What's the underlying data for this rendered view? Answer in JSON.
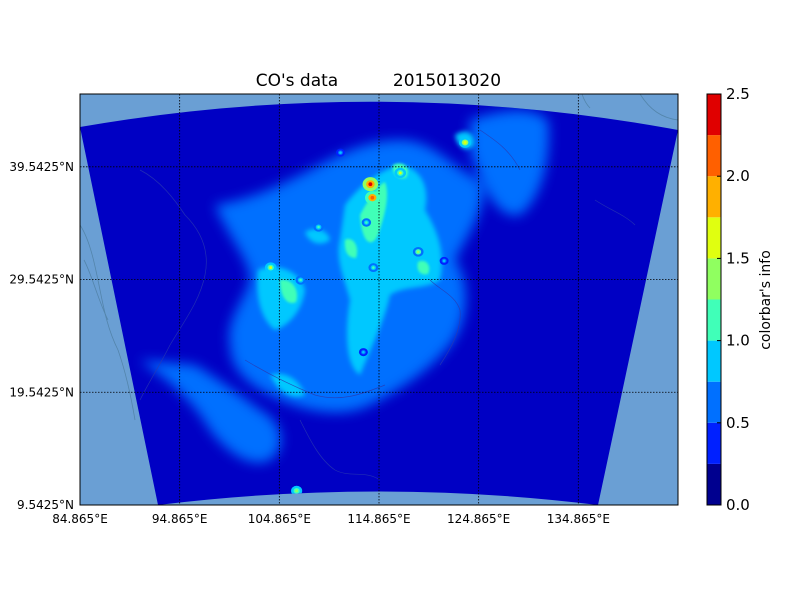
{
  "chart_data": {
    "type": "heatmap",
    "title": "CO's data",
    "timestamp": "2015013020",
    "x_ticks": [
      "84.865°E",
      "94.865°E",
      "104.865°E",
      "114.865°E",
      "124.865°E",
      "134.865°E"
    ],
    "x_tick_values": [
      84.865,
      94.865,
      104.865,
      114.865,
      124.865,
      134.865
    ],
    "y_ticks": [
      "9.5425°N",
      "19.5425°N",
      "29.5425°N",
      "39.5425°N"
    ],
    "y_tick_values": [
      9.5425,
      19.5425,
      29.5425,
      39.5425
    ],
    "xlim": [
      84.865,
      144.865
    ],
    "ylim": [
      9.5425,
      46.0
    ],
    "grid": true,
    "colorbar": {
      "label": "colorbar's info",
      "ticks": [
        "0.0",
        "0.5",
        "1.0",
        "1.5",
        "2.0",
        "2.5"
      ],
      "range": [
        0.0,
        2.5
      ],
      "levels": [
        0.0,
        0.25,
        0.5,
        0.75,
        1.0,
        1.25,
        1.5,
        1.75,
        2.0,
        2.25,
        2.5
      ],
      "colors": [
        "#00008f",
        "#0020ff",
        "#0070ff",
        "#00c8ff",
        "#40ffb8",
        "#90ff60",
        "#e0ff10",
        "#ffb000",
        "#ff6000",
        "#e00000"
      ]
    },
    "colors": {
      "ocean": "#6a9fd4",
      "background_field": "#0000c4",
      "low": "#0020ff",
      "mid": "#0070ff",
      "high": "#00c8ff",
      "very_high": "#40ffb8",
      "peak": "#e0ff10",
      "max": "#e00000"
    },
    "hotspots": [
      {
        "lon": 114.0,
        "lat": 38.0,
        "value": 2.4
      },
      {
        "lon": 114.2,
        "lat": 36.8,
        "value": 2.2
      },
      {
        "lon": 113.6,
        "lat": 34.6,
        "value": 1.0
      },
      {
        "lon": 117.0,
        "lat": 39.0,
        "value": 1.5
      },
      {
        "lon": 123.5,
        "lat": 41.7,
        "value": 1.6
      },
      {
        "lon": 104.0,
        "lat": 30.6,
        "value": 1.5
      },
      {
        "lon": 107.0,
        "lat": 29.5,
        "value": 1.2
      },
      {
        "lon": 108.8,
        "lat": 34.2,
        "value": 1.2
      },
      {
        "lon": 118.8,
        "lat": 32.0,
        "value": 1.3
      },
      {
        "lon": 114.3,
        "lat": 30.6,
        "value": 1.1
      },
      {
        "lon": 113.3,
        "lat": 23.1,
        "value": 0.9
      },
      {
        "lon": 106.6,
        "lat": 10.8,
        "value": 1.4
      },
      {
        "lon": 121.4,
        "lat": 31.2,
        "value": 0.9
      },
      {
        "lon": 111.0,
        "lat": 40.8,
        "value": 0.9
      }
    ]
  }
}
